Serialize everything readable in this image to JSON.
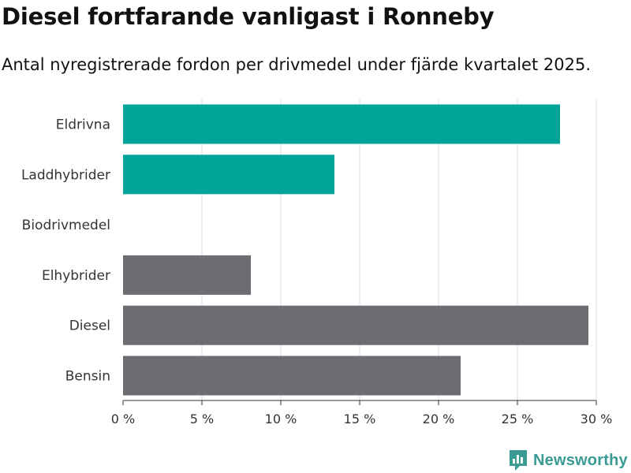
{
  "chart_data": {
    "type": "bar",
    "orientation": "horizontal",
    "title": "Diesel fortfarande vanligast i Ronneby",
    "subtitle": "Antal nyregistrerade fordon per drivmedel under fjärde kvartalet 2025.",
    "categories": [
      "Eldrivna",
      "Laddhybrider",
      "Biodrivmedel",
      "Elhybrider",
      "Diesel",
      "Bensin"
    ],
    "values": [
      27.7,
      13.4,
      0,
      8.1,
      29.5,
      21.4
    ],
    "colors": [
      "#00a499",
      "#00a499",
      "#00a499",
      "#6d6c72",
      "#6d6c72",
      "#6d6c72"
    ],
    "xlim": [
      0,
      30
    ],
    "xticks": [
      0,
      5,
      10,
      15,
      20,
      25,
      30
    ],
    "xtick_labels": [
      "0 %",
      "5 %",
      "10 %",
      "15 %",
      "20 %",
      "25 %",
      "30 %"
    ],
    "xlabel": "",
    "ylabel": "",
    "grid": true
  },
  "brand": {
    "name": "Newsworthy",
    "color": "#3a9a94"
  }
}
